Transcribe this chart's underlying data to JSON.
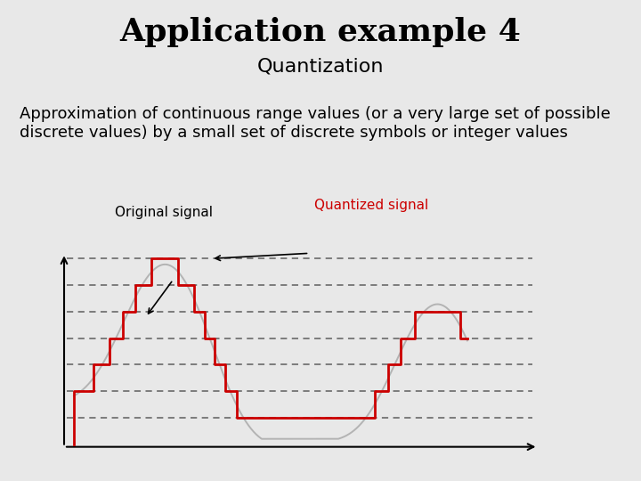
{
  "title": "Application example 4",
  "subtitle": "Quantization",
  "description": "Approximation of continuous range values (or a very large set of possible\ndiscrete values) by a small set of discrete symbols or integer values",
  "title_fontsize": 26,
  "subtitle_fontsize": 16,
  "desc_fontsize": 13,
  "background_color": "#e8e8e8",
  "quantized_color": "#cc0000",
  "original_color": "#aaaaaa",
  "dashed_color": "#666666",
  "label_original": "Original signal",
  "label_quantized": "Quantized signal",
  "label_quantized_color": "#cc0000",
  "label_original_color": "#000000"
}
